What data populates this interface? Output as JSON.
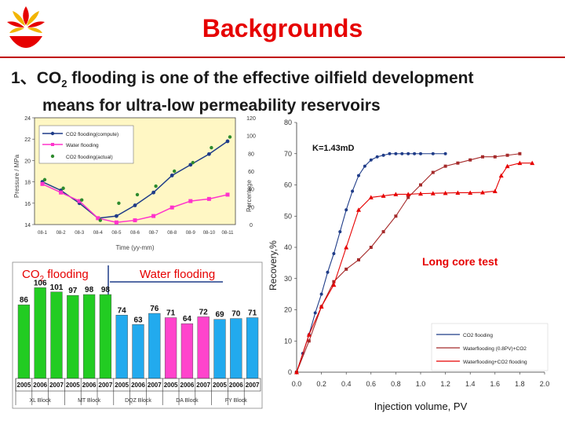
{
  "slide": {
    "title": "Backgrounds",
    "point_number": "1、",
    "point_line1_pre": "CO",
    "point_line1_sub": "2",
    "point_line1_post": " flooding is one of the effective oilfield development",
    "point_line2": "means for ultra-low permeability reservoirs"
  },
  "colors": {
    "title": "#e60000",
    "rule": "#c00000",
    "co2": "#1f3c88",
    "water": "#ff33cc",
    "actual": "#2e8b2e"
  },
  "chart_data": [
    {
      "type": "line",
      "title": "",
      "xlabel": "Time (yy-mm)",
      "ylabel": "Pressure / MPa",
      "y2label": "Percentage",
      "categories": [
        "08-1",
        "08-2",
        "08-3",
        "08-4",
        "08-5",
        "08-6",
        "08-7",
        "08-8",
        "08-9",
        "08-10",
        "08-11"
      ],
      "ylim": [
        14,
        24
      ],
      "yticks": [
        "14",
        "16",
        "18",
        "20",
        "22",
        "24"
      ],
      "y2lim": [
        0,
        120
      ],
      "y2ticks": [
        "0",
        "20",
        "40",
        "60",
        "80",
        "100",
        "120"
      ],
      "series": [
        {
          "name": "CO2 flooding(compute)",
          "values": [
            18.0,
            17.2,
            16.0,
            14.6,
            14.8,
            15.8,
            17.0,
            18.6,
            19.6,
            20.6,
            21.8
          ]
        },
        {
          "name": "Water flooding",
          "values": [
            17.8,
            17.0,
            16.2,
            14.6,
            14.2,
            14.4,
            14.8,
            15.6,
            16.2,
            16.4,
            16.8
          ]
        },
        {
          "name": "CO2 flooding(actual)",
          "values": [
            18.2,
            17.4,
            16.3,
            14.4,
            16.0,
            16.8,
            17.6,
            19.0,
            19.8,
            21.2,
            22.2
          ]
        }
      ],
      "legend_position": "top-left"
    },
    {
      "type": "bar",
      "title": "",
      "group_labels": {
        "co2": "CO",
        "co2_sub": "2",
        "co2_post": " flooding",
        "water": "Water flooding"
      },
      "categories": [
        "2005",
        "2006",
        "2007",
        "2005",
        "2006",
        "2007",
        "2005",
        "2006",
        "2007",
        "2005",
        "2006",
        "2007",
        "2005",
        "2006",
        "2007"
      ],
      "blocks": [
        "XL Block",
        "MT Block",
        "DQZ Block",
        "DA Block",
        "FY Block"
      ],
      "values": [
        86,
        106,
        101,
        97,
        98,
        98,
        74,
        63,
        76,
        71,
        64,
        72,
        69,
        70,
        71
      ],
      "labels": [
        "86",
        "106",
        "101",
        "97",
        "98",
        "98",
        "74",
        "63",
        "76",
        "71",
        "64",
        "72",
        "69",
        "70",
        "71"
      ],
      "ylim": [
        0,
        110
      ]
    },
    {
      "type": "line",
      "title": "",
      "xlabel": "Injection volume, PV",
      "ylabel": "Recovery,%",
      "annotation_k": "K=1.43mD",
      "annotation_test": "Long core test",
      "xlim": [
        0,
        2.0
      ],
      "xticks": [
        "0.0",
        "0.2",
        "0.4",
        "0.6",
        "0.8",
        "1.0",
        "1.2",
        "1.4",
        "1.6",
        "1.8",
        "2.0"
      ],
      "ylim": [
        0,
        80
      ],
      "yticks": [
        "0",
        "10",
        "20",
        "30",
        "40",
        "50",
        "60",
        "70",
        "80"
      ],
      "series": [
        {
          "name": "CO2 flooding",
          "x": [
            0,
            0.05,
            0.1,
            0.15,
            0.2,
            0.25,
            0.3,
            0.35,
            0.4,
            0.45,
            0.5,
            0.55,
            0.6,
            0.65,
            0.7,
            0.75,
            0.8,
            0.85,
            0.9,
            0.95,
            1.0,
            1.1,
            1.2
          ],
          "values": [
            0,
            6,
            12,
            19,
            25,
            32,
            38,
            45,
            52,
            58,
            63,
            66,
            68,
            69,
            69.5,
            70,
            70,
            70,
            70,
            70,
            70,
            70,
            70
          ]
        },
        {
          "name": "Waterflooding (0.8PV)+CO2",
          "x": [
            0,
            0.1,
            0.2,
            0.3,
            0.4,
            0.5,
            0.6,
            0.7,
            0.8,
            0.9,
            1.0,
            1.1,
            1.2,
            1.3,
            1.4,
            1.5,
            1.6,
            1.7,
            1.8
          ],
          "values": [
            0,
            10,
            21,
            29,
            33,
            36,
            40,
            45,
            50,
            56,
            60,
            64,
            66,
            67,
            68,
            69,
            69,
            69.5,
            70
          ]
        },
        {
          "name": "Waterflooding+CO2 flooding",
          "x": [
            0,
            0.1,
            0.2,
            0.3,
            0.4,
            0.5,
            0.6,
            0.7,
            0.8,
            0.9,
            1.0,
            1.1,
            1.2,
            1.3,
            1.4,
            1.5,
            1.6,
            1.65,
            1.7,
            1.8,
            1.9
          ],
          "values": [
            0,
            12,
            21,
            28,
            40,
            52,
            56,
            56.5,
            57,
            57,
            57.2,
            57.3,
            57.4,
            57.5,
            57.5,
            57.6,
            58,
            63,
            66,
            67,
            67
          ]
        }
      ],
      "legend_position": "bottom-right"
    }
  ]
}
